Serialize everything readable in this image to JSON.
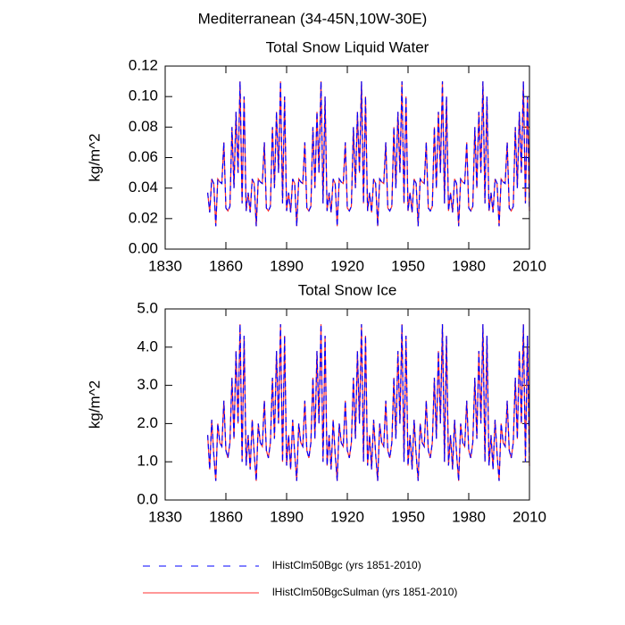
{
  "title": "Mediterranean (34-45N,10W-30E)",
  "chart_data": [
    {
      "type": "line",
      "title": "Total Snow Liquid Water",
      "ylabel": "kg/m^2",
      "x": [
        1851,
        1852,
        1853,
        1854,
        1855,
        1856,
        1857,
        1858,
        1859,
        1860,
        1861,
        1862,
        1863,
        1864,
        1865,
        1866,
        1867,
        1868,
        1869,
        1870,
        1871,
        1872,
        1873,
        1874,
        1875,
        1876,
        1877,
        1878,
        1879,
        1880,
        1881,
        1882,
        1883,
        1884,
        1885,
        1886,
        1887,
        1888,
        1889,
        1890,
        1891,
        1892,
        1893,
        1894,
        1895,
        1896,
        1897,
        1898,
        1899,
        1900,
        1901,
        1902,
        1903,
        1904,
        1905,
        1906,
        1907,
        1908,
        1909,
        1910,
        1911,
        1912,
        1913,
        1914,
        1915,
        1916,
        1917,
        1918,
        1919,
        1920,
        1921,
        1922,
        1923,
        1924,
        1925,
        1926,
        1927,
        1928,
        1929,
        1930,
        1931,
        1932,
        1933,
        1934,
        1935,
        1936,
        1937,
        1938,
        1939,
        1940,
        1941,
        1942,
        1943,
        1944,
        1945,
        1946,
        1947,
        1948,
        1949,
        1950,
        1951,
        1952,
        1953,
        1954,
        1955,
        1956,
        1957,
        1958,
        1959,
        1960,
        1961,
        1962,
        1963,
        1964,
        1965,
        1966,
        1967,
        1968,
        1969,
        1970,
        1971,
        1972,
        1973,
        1974,
        1975,
        1976,
        1977,
        1978,
        1979,
        1980,
        1981,
        1982,
        1983,
        1984,
        1985,
        1986,
        1987,
        1988,
        1989,
        1990,
        1991,
        1992,
        1993,
        1994,
        1995,
        1996,
        1997,
        1998,
        1999,
        2000,
        2001,
        2002,
        2003,
        2004,
        2005,
        2006,
        2007,
        2008,
        2009,
        2010
      ],
      "xlim": [
        1830,
        2010
      ],
      "xticks": [
        1830,
        1860,
        1890,
        1920,
        1950,
        1980,
        2010
      ],
      "ylim": [
        0,
        0.12
      ],
      "yticks": [
        {
          "value": 0,
          "label": "0.00"
        },
        {
          "value": 0.02,
          "label": "0.02"
        },
        {
          "value": 0.04,
          "label": "0.04"
        },
        {
          "value": 0.06,
          "label": "0.06"
        },
        {
          "value": 0.08,
          "label": "0.08"
        },
        {
          "value": 0.1,
          "label": "0.10"
        },
        {
          "value": 0.12,
          "label": "0.12"
        }
      ],
      "series": [
        {
          "name": "lHistClm50Bgc (yrs 1851-2010)",
          "color": "#0000ff",
          "dash": true,
          "values": [
            0.037,
            0.024,
            0.046,
            0.043,
            0.015,
            0.046,
            0.044,
            0.043,
            0.07,
            0.027,
            0.025,
            0.028,
            0.08,
            0.04,
            0.09,
            0.05,
            0.11,
            0.03,
            0.1,
            0.025,
            0.037,
            0.024,
            0.046,
            0.043,
            0.015,
            0.046,
            0.044,
            0.043,
            0.07,
            0.027,
            0.025,
            0.028,
            0.08,
            0.04,
            0.09,
            0.05,
            0.11,
            0.03,
            0.1,
            0.025,
            0.037,
            0.024,
            0.046,
            0.043,
            0.015,
            0.046,
            0.044,
            0.043,
            0.07,
            0.027,
            0.025,
            0.028,
            0.08,
            0.04,
            0.09,
            0.05,
            0.11,
            0.03,
            0.1,
            0.025,
            0.037,
            0.024,
            0.046,
            0.043,
            0.015,
            0.046,
            0.044,
            0.043,
            0.07,
            0.027,
            0.025,
            0.028,
            0.08,
            0.04,
            0.09,
            0.05,
            0.11,
            0.03,
            0.1,
            0.025,
            0.037,
            0.024,
            0.046,
            0.043,
            0.015,
            0.046,
            0.044,
            0.043,
            0.07,
            0.027,
            0.025,
            0.028,
            0.08,
            0.04,
            0.09,
            0.05,
            0.11,
            0.03,
            0.1,
            0.025,
            0.037,
            0.024,
            0.046,
            0.043,
            0.015,
            0.046,
            0.044,
            0.043,
            0.07,
            0.027,
            0.025,
            0.028,
            0.08,
            0.04,
            0.09,
            0.05,
            0.11,
            0.03,
            0.1,
            0.025,
            0.037,
            0.024,
            0.046,
            0.043,
            0.015,
            0.046,
            0.044,
            0.043,
            0.07,
            0.027,
            0.025,
            0.028,
            0.08,
            0.04,
            0.09,
            0.05,
            0.11,
            0.03,
            0.1,
            0.025,
            0.037,
            0.024,
            0.046,
            0.043,
            0.015,
            0.046,
            0.044,
            0.043,
            0.07,
            0.027,
            0.025,
            0.028,
            0.08,
            0.04,
            0.09,
            0.05,
            0.11,
            0.03,
            0.1,
            0.025
          ]
        },
        {
          "name": "lHistClm50BgcSulman (yrs 1851-2010)",
          "color": "#ff3030",
          "dash": false,
          "values": [
            0.037,
            0.024,
            0.046,
            0.043,
            0.015,
            0.046,
            0.044,
            0.043,
            0.07,
            0.027,
            0.025,
            0.028,
            0.08,
            0.04,
            0.09,
            0.05,
            0.11,
            0.03,
            0.1,
            0.025,
            0.037,
            0.024,
            0.046,
            0.043,
            0.015,
            0.046,
            0.044,
            0.043,
            0.07,
            0.027,
            0.025,
            0.028,
            0.08,
            0.04,
            0.09,
            0.05,
            0.11,
            0.03,
            0.1,
            0.025,
            0.037,
            0.024,
            0.046,
            0.043,
            0.015,
            0.046,
            0.044,
            0.043,
            0.07,
            0.027,
            0.025,
            0.028,
            0.08,
            0.04,
            0.09,
            0.05,
            0.11,
            0.03,
            0.1,
            0.025,
            0.037,
            0.024,
            0.046,
            0.043,
            0.015,
            0.046,
            0.044,
            0.043,
            0.07,
            0.027,
            0.025,
            0.028,
            0.08,
            0.04,
            0.09,
            0.05,
            0.11,
            0.03,
            0.1,
            0.025,
            0.037,
            0.024,
            0.046,
            0.043,
            0.015,
            0.046,
            0.044,
            0.043,
            0.07,
            0.027,
            0.025,
            0.028,
            0.08,
            0.04,
            0.09,
            0.05,
            0.11,
            0.03,
            0.1,
            0.025,
            0.037,
            0.024,
            0.046,
            0.043,
            0.015,
            0.046,
            0.044,
            0.043,
            0.07,
            0.027,
            0.025,
            0.028,
            0.08,
            0.04,
            0.09,
            0.05,
            0.11,
            0.03,
            0.1,
            0.025,
            0.037,
            0.024,
            0.046,
            0.043,
            0.015,
            0.046,
            0.044,
            0.043,
            0.07,
            0.027,
            0.025,
            0.028,
            0.08,
            0.04,
            0.09,
            0.05,
            0.11,
            0.03,
            0.1,
            0.025,
            0.037,
            0.024,
            0.046,
            0.043,
            0.015,
            0.046,
            0.044,
            0.043,
            0.07,
            0.027,
            0.025,
            0.028,
            0.08,
            0.04,
            0.09,
            0.05,
            0.11,
            0.03,
            0.1,
            0.025
          ]
        }
      ]
    },
    {
      "type": "line",
      "title": "Total Snow Ice",
      "ylabel": "kg/m^2",
      "x": [
        1851,
        1852,
        1853,
        1854,
        1855,
        1856,
        1857,
        1858,
        1859,
        1860,
        1861,
        1862,
        1863,
        1864,
        1865,
        1866,
        1867,
        1868,
        1869,
        1870,
        1871,
        1872,
        1873,
        1874,
        1875,
        1876,
        1877,
        1878,
        1879,
        1880,
        1881,
        1882,
        1883,
        1884,
        1885,
        1886,
        1887,
        1888,
        1889,
        1890,
        1891,
        1892,
        1893,
        1894,
        1895,
        1896,
        1897,
        1898,
        1899,
        1900,
        1901,
        1902,
        1903,
        1904,
        1905,
        1906,
        1907,
        1908,
        1909,
        1910,
        1911,
        1912,
        1913,
        1914,
        1915,
        1916,
        1917,
        1918,
        1919,
        1920,
        1921,
        1922,
        1923,
        1924,
        1925,
        1926,
        1927,
        1928,
        1929,
        1930,
        1931,
        1932,
        1933,
        1934,
        1935,
        1936,
        1937,
        1938,
        1939,
        1940,
        1941,
        1942,
        1943,
        1944,
        1945,
        1946,
        1947,
        1948,
        1949,
        1950,
        1951,
        1952,
        1953,
        1954,
        1955,
        1956,
        1957,
        1958,
        1959,
        1960,
        1961,
        1962,
        1963,
        1964,
        1965,
        1966,
        1967,
        1968,
        1969,
        1970,
        1971,
        1972,
        1973,
        1974,
        1975,
        1976,
        1977,
        1978,
        1979,
        1980,
        1981,
        1982,
        1983,
        1984,
        1985,
        1986,
        1987,
        1988,
        1989,
        1990,
        1991,
        1992,
        1993,
        1994,
        1995,
        1996,
        1997,
        1998,
        1999,
        2000,
        2001,
        2002,
        2003,
        2004,
        2005,
        2006,
        2007,
        2008,
        2009,
        2010
      ],
      "xlim": [
        1830,
        2010
      ],
      "xticks": [
        1830,
        1860,
        1890,
        1920,
        1950,
        1980,
        2010
      ],
      "ylim": [
        0,
        5
      ],
      "yticks": [
        {
          "value": 0,
          "label": "0.0"
        },
        {
          "value": 1,
          "label": "1.0"
        },
        {
          "value": 2,
          "label": "2.0"
        },
        {
          "value": 3,
          "label": "3.0"
        },
        {
          "value": 4,
          "label": "4.0"
        },
        {
          "value": 5,
          "label": "5.0"
        }
      ],
      "series": [
        {
          "color": "#0000ff",
          "dash": true,
          "values": [
            1.7,
            0.8,
            2.1,
            1.2,
            0.5,
            2.0,
            1.5,
            1.4,
            2.6,
            1.3,
            1.1,
            1.5,
            3.2,
            1.6,
            3.9,
            2.0,
            4.6,
            1.0,
            4.3,
            0.9,
            1.7,
            0.8,
            2.1,
            1.2,
            0.5,
            2.0,
            1.5,
            1.4,
            2.6,
            1.3,
            1.1,
            1.5,
            3.2,
            1.6,
            3.9,
            2.0,
            4.6,
            1.0,
            4.3,
            0.9,
            1.7,
            0.8,
            2.1,
            1.2,
            0.5,
            2.0,
            1.5,
            1.4,
            2.6,
            1.3,
            1.1,
            1.5,
            3.2,
            1.6,
            3.9,
            2.0,
            4.6,
            1.0,
            4.3,
            0.9,
            1.7,
            0.8,
            2.1,
            1.2,
            0.5,
            2.0,
            1.5,
            1.4,
            2.6,
            1.3,
            1.1,
            1.5,
            3.2,
            1.6,
            3.9,
            2.0,
            4.6,
            1.0,
            4.3,
            0.9,
            1.7,
            0.8,
            2.1,
            1.2,
            0.5,
            2.0,
            1.5,
            1.4,
            2.6,
            1.3,
            1.1,
            1.5,
            3.2,
            1.6,
            3.9,
            2.0,
            4.6,
            1.0,
            4.3,
            0.9,
            1.7,
            0.8,
            2.1,
            1.2,
            0.5,
            2.0,
            1.5,
            1.4,
            2.6,
            1.3,
            1.1,
            1.5,
            3.2,
            1.6,
            3.9,
            2.0,
            4.6,
            1.0,
            4.3,
            0.9,
            1.7,
            0.8,
            2.1,
            1.2,
            0.5,
            2.0,
            1.5,
            1.4,
            2.6,
            1.3,
            1.1,
            1.5,
            3.2,
            1.6,
            3.9,
            2.0,
            4.6,
            1.0,
            4.3,
            0.9,
            1.7,
            0.8,
            2.1,
            1.2,
            0.5,
            2.0,
            1.5,
            1.4,
            2.6,
            1.3,
            1.1,
            1.5,
            3.2,
            1.6,
            3.9,
            2.0,
            4.6,
            1.0,
            4.3,
            0.9
          ]
        },
        {
          "color": "#ff3030",
          "dash": false,
          "values": [
            1.7,
            0.8,
            2.1,
            1.2,
            0.5,
            2.0,
            1.5,
            1.4,
            2.6,
            1.3,
            1.1,
            1.5,
            3.2,
            1.6,
            3.9,
            2.0,
            4.6,
            1.0,
            4.3,
            0.9,
            1.7,
            0.8,
            2.1,
            1.2,
            0.5,
            2.0,
            1.5,
            1.4,
            2.6,
            1.3,
            1.1,
            1.5,
            3.2,
            1.6,
            3.9,
            2.0,
            4.6,
            1.0,
            4.3,
            0.9,
            1.7,
            0.8,
            2.1,
            1.2,
            0.5,
            2.0,
            1.5,
            1.4,
            2.6,
            1.3,
            1.1,
            1.5,
            3.2,
            1.6,
            3.9,
            2.0,
            4.6,
            1.0,
            4.3,
            0.9,
            1.7,
            0.8,
            2.1,
            1.2,
            0.5,
            2.0,
            1.5,
            1.4,
            2.6,
            1.3,
            1.1,
            1.5,
            3.2,
            1.6,
            3.9,
            2.0,
            4.6,
            1.0,
            4.3,
            0.9,
            1.7,
            0.8,
            2.1,
            1.2,
            0.5,
            2.0,
            1.5,
            1.4,
            2.6,
            1.3,
            1.1,
            1.5,
            3.2,
            1.6,
            3.9,
            2.0,
            4.6,
            1.0,
            4.3,
            0.9,
            1.7,
            0.8,
            2.1,
            1.2,
            0.5,
            2.0,
            1.5,
            1.4,
            2.6,
            1.3,
            1.1,
            1.5,
            3.2,
            1.6,
            3.9,
            2.0,
            4.6,
            1.0,
            4.3,
            0.9,
            1.7,
            0.8,
            2.1,
            1.2,
            0.5,
            2.0,
            1.5,
            1.4,
            2.6,
            1.3,
            1.1,
            1.5,
            3.2,
            1.6,
            3.9,
            2.0,
            4.6,
            1.0,
            4.3,
            0.9,
            1.7,
            0.8,
            2.1,
            1.2,
            0.5,
            2.0,
            1.5,
            1.4,
            2.6,
            1.3,
            1.1,
            1.5,
            3.2,
            1.6,
            3.9,
            2.0,
            4.6,
            1.0,
            4.3,
            0.9
          ]
        }
      ]
    }
  ]
}
